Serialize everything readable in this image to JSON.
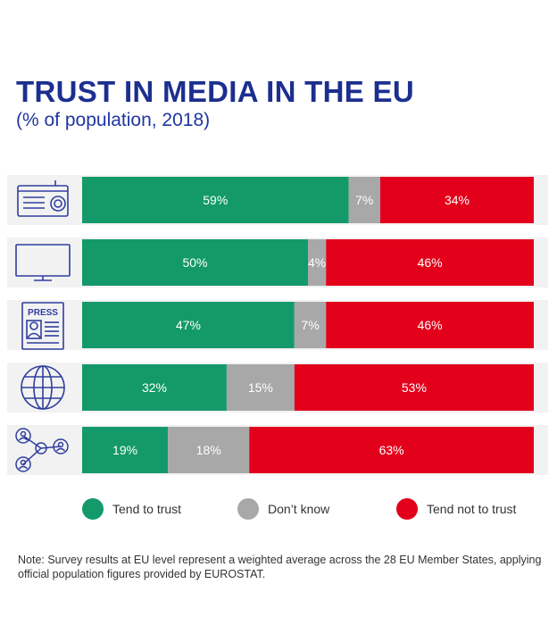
{
  "title": "TRUST IN MEDIA IN THE EU",
  "subtitle": "(% of population, 2018)",
  "note": "Note: Survey results at EU level represent a weighted average across the 28 EU Member States, applying official population figures provided by EUROSTAT.",
  "colors": {
    "trust": "#149a6a",
    "dont_know": "#a8a8a8",
    "not_trust": "#e3001b",
    "row_bg": "#f2f2f2",
    "icon": "#2f3e9e",
    "bar_text": "#ffffff",
    "legend_text": "#333333"
  },
  "chart_data": {
    "type": "bar",
    "orientation": "horizontal",
    "stacked": true,
    "categories": [
      "radio-icon",
      "tv-icon",
      "press-icon",
      "internet-icon",
      "social-network-icon"
    ],
    "icon_text": {
      "press": "PRESS"
    },
    "series": [
      {
        "name": "Tend to trust",
        "values": [
          59,
          50,
          47,
          32,
          19
        ],
        "labels": [
          "59%",
          "50%",
          "47%",
          "32%",
          "19%"
        ]
      },
      {
        "name": "Don't know",
        "values": [
          7,
          4,
          7,
          15,
          18
        ],
        "labels": [
          "7%",
          "4%",
          "7%",
          "15%",
          "18%"
        ]
      },
      {
        "name": "Tend not to trust",
        "values": [
          34,
          46,
          46,
          53,
          63
        ],
        "labels": [
          "34%",
          "46%",
          "46%",
          "53%",
          "63%"
        ]
      }
    ],
    "xlim": [
      0,
      100
    ],
    "legend": {
      "placement": "bottom",
      "items": [
        {
          "key": "trust",
          "label": "Tend to trust"
        },
        {
          "key": "dont_know",
          "label": "Don’t know"
        },
        {
          "key": "not_trust",
          "label": "Tend not to trust"
        }
      ]
    }
  }
}
